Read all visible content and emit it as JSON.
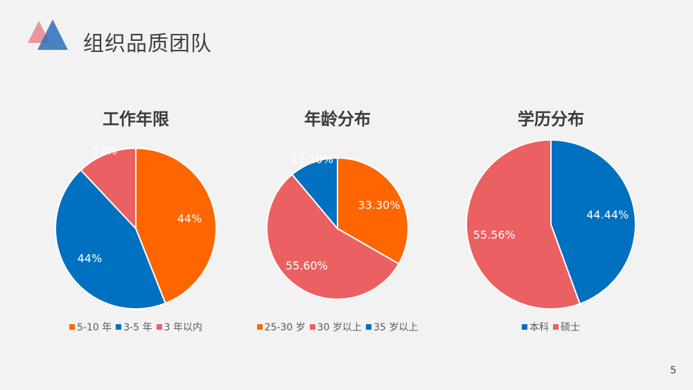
{
  "page": {
    "title": "组织品质团队",
    "page_number": "5",
    "logo_icon": "overlapping-triangles-icon"
  },
  "colors": {
    "orange": "#ff6600",
    "blue": "#0070c0",
    "coral": "#eb6061",
    "background": "#f2f2f2"
  },
  "chart_data": [
    {
      "type": "pie",
      "title": "工作年限",
      "categories": [
        "5-10  年",
        "3-5 年",
        "3 年以内"
      ],
      "values": [
        44,
        44,
        12
      ],
      "labels": [
        "44%",
        "44%",
        "12%"
      ],
      "colors": [
        "#ff6600",
        "#0070c0",
        "#eb6061"
      ],
      "legend_position": "bottom"
    },
    {
      "type": "pie",
      "title": "年龄分布",
      "categories": [
        "25-30 岁",
        "30 岁以上",
        "35 岁以上"
      ],
      "values": [
        33.3,
        55.6,
        11.1
      ],
      "labels": [
        "33.30%",
        "55.60%",
        "11.10%"
      ],
      "colors": [
        "#ff6600",
        "#eb6061",
        "#0070c0"
      ],
      "legend_position": "bottom"
    },
    {
      "type": "pie",
      "title": "学历分布",
      "categories": [
        "本科",
        "硕士"
      ],
      "values": [
        44.44,
        55.56
      ],
      "labels": [
        "44.44%",
        "55.56%"
      ],
      "colors": [
        "#0070c0",
        "#eb6061"
      ],
      "legend_position": "bottom"
    }
  ]
}
